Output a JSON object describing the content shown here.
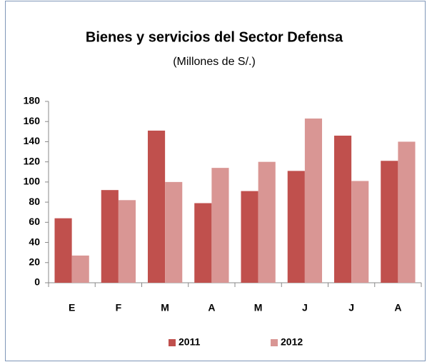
{
  "chart_data": {
    "type": "bar",
    "title": "Bienes y servicios del Sector Defensa",
    "subtitle": "(Millones de S/.)",
    "categories": [
      "E",
      "F",
      "M",
      "A",
      "M",
      "J",
      "J",
      "A"
    ],
    "series": [
      {
        "name": "2011",
        "color": "#c0504d",
        "values": [
          64,
          92,
          151,
          79,
          91,
          111,
          146,
          121
        ]
      },
      {
        "name": "2012",
        "color": "#d99694",
        "values": [
          27,
          82,
          100,
          114,
          120,
          163,
          101,
          140
        ]
      }
    ],
    "ylim": [
      0,
      180
    ],
    "yticks": [
      0,
      20,
      40,
      60,
      80,
      100,
      120,
      140,
      160,
      180
    ],
    "grid": false,
    "legend": "bottom"
  }
}
